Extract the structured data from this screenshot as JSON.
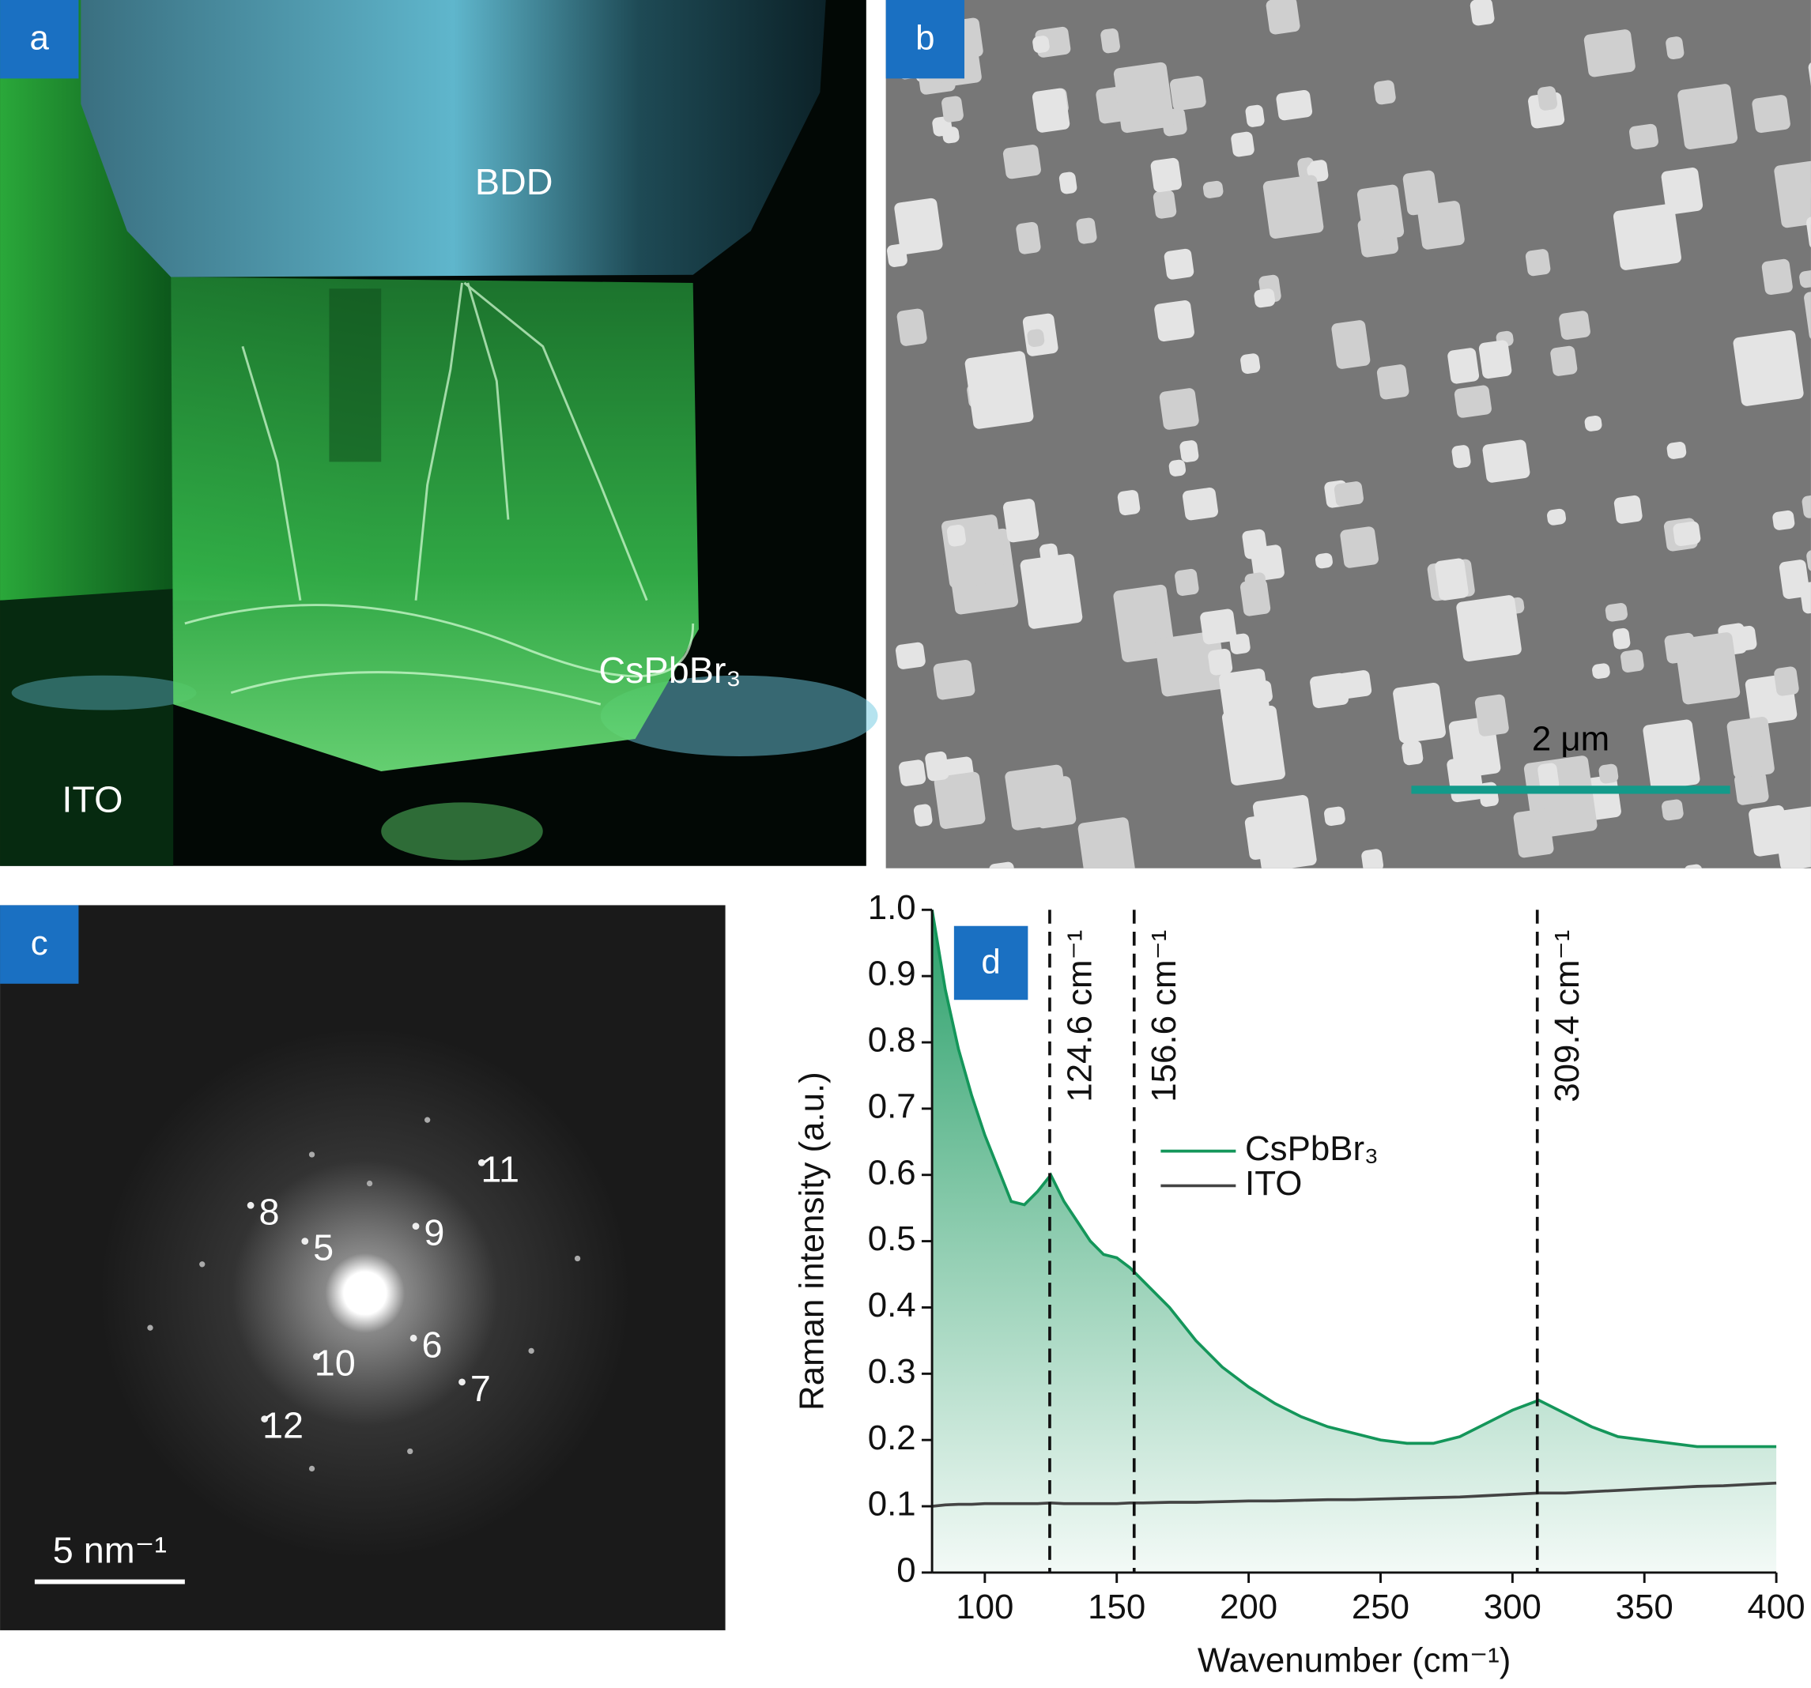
{
  "panel_a": {
    "label": "a",
    "annotations": [
      "BDD",
      "CsPbBr₃",
      "ITO"
    ]
  },
  "panel_b": {
    "label": "b",
    "scale_bar": "2 μm"
  },
  "panel_c": {
    "label": "c",
    "spot_labels": [
      "8",
      "5",
      "9",
      "11",
      "6",
      "10",
      "7",
      "12"
    ],
    "scale_bar": "5 nm⁻¹"
  },
  "chart_data": {
    "type": "line",
    "panel_label": "d",
    "x_label": "Wavenumber (cm⁻¹)",
    "y_label": "Raman intensity (a.u.)",
    "x": [
      80,
      85,
      90,
      95,
      100,
      105,
      110,
      115,
      120,
      125,
      130,
      135,
      140,
      145,
      150,
      155,
      160,
      170,
      180,
      190,
      200,
      210,
      220,
      230,
      240,
      250,
      260,
      270,
      280,
      290,
      300,
      310,
      320,
      330,
      340,
      350,
      360,
      370,
      380,
      390,
      400
    ],
    "series": [
      {
        "name": "CsPbBr₃",
        "color": "#14965a",
        "fill": true,
        "values": [
          1.0,
          0.88,
          0.79,
          0.72,
          0.66,
          0.61,
          0.56,
          0.555,
          0.575,
          0.6,
          0.56,
          0.53,
          0.5,
          0.48,
          0.475,
          0.46,
          0.44,
          0.4,
          0.35,
          0.31,
          0.28,
          0.255,
          0.235,
          0.22,
          0.21,
          0.2,
          0.195,
          0.195,
          0.205,
          0.225,
          0.245,
          0.26,
          0.24,
          0.22,
          0.205,
          0.2,
          0.195,
          0.19,
          0.19,
          0.19,
          0.19
        ]
      },
      {
        "name": "ITO",
        "color": "#444444",
        "fill": false,
        "values": [
          0.1,
          0.102,
          0.103,
          0.103,
          0.104,
          0.104,
          0.104,
          0.104,
          0.104,
          0.105,
          0.104,
          0.104,
          0.104,
          0.104,
          0.104,
          0.105,
          0.105,
          0.106,
          0.106,
          0.107,
          0.108,
          0.108,
          0.109,
          0.11,
          0.11,
          0.111,
          0.112,
          0.113,
          0.114,
          0.116,
          0.118,
          0.12,
          0.12,
          0.122,
          0.124,
          0.126,
          0.128,
          0.13,
          0.131,
          0.133,
          0.135
        ]
      }
    ],
    "markers": [
      {
        "x": 124.6,
        "label": "124.6 cm⁻¹"
      },
      {
        "x": 156.6,
        "label": "156.6 cm⁻¹"
      },
      {
        "x": 309.4,
        "label": "309.4 cm⁻¹"
      }
    ],
    "xlim": [
      80,
      400
    ],
    "ylim": [
      0,
      1
    ],
    "xticks": [
      100,
      150,
      200,
      250,
      300,
      350,
      400
    ],
    "yticks": [
      0,
      0.1,
      0.2,
      0.3,
      0.4,
      0.5,
      0.6,
      0.7,
      0.8,
      0.9,
      {
        "value": 1,
        "label": "1.0"
      }
    ],
    "legend": "upper-center"
  }
}
